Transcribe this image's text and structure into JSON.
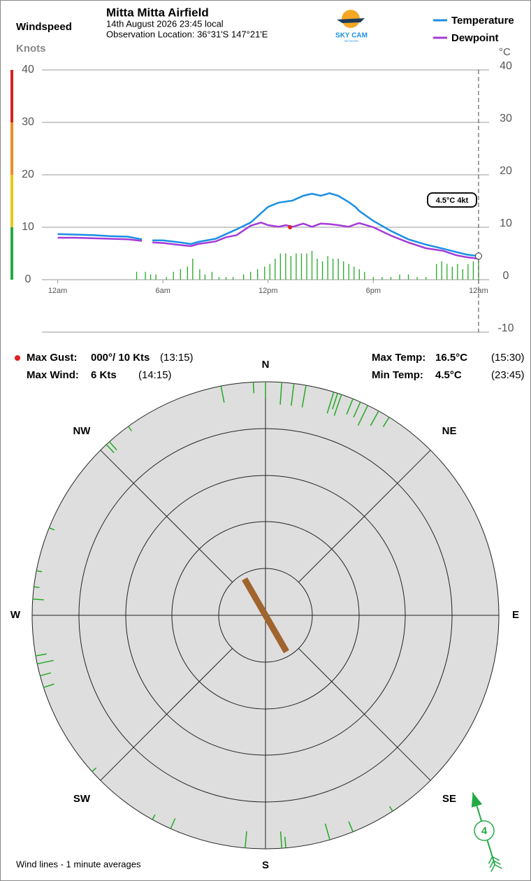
{
  "header": {
    "windspeed_label": "Windspeed",
    "knots_label": "Knots",
    "title": "Mitta Mitta Airfield",
    "date": "14th August 2026  23:45 local",
    "location": "Observation Location: 36°31'S 147°21'E",
    "logo_text": "SKY CAM",
    "logo_subtext": "NETWORK",
    "celsius_label": "°C"
  },
  "chart_data": [
    {
      "type": "line",
      "x": [
        0,
        1,
        2,
        3,
        4,
        4.8,
        5,
        5.4,
        6,
        7,
        7.6,
        8,
        9,
        9.6,
        10.2,
        11,
        11.6,
        12,
        12.6,
        13,
        13.4,
        14,
        14.5,
        15,
        15.5,
        16,
        16.6,
        17,
        17.2,
        18,
        19,
        20,
        21,
        22,
        22.7,
        23.3,
        24
      ],
      "xlim": [
        -0.9,
        24.6
      ],
      "xticks": [
        {
          "value": 0,
          "label": "12am"
        },
        {
          "value": 6,
          "label": "6am"
        },
        {
          "value": 12,
          "label": "12pm"
        },
        {
          "value": 18,
          "label": "6pm"
        },
        {
          "value": 24,
          "label": "12am"
        }
      ],
      "ylim": [
        0,
        40
      ],
      "yticks": [
        0,
        10,
        20,
        30,
        40
      ],
      "y2lim": [
        -10,
        40
      ],
      "y2ticks": [
        -10,
        0,
        10,
        20,
        30,
        40
      ],
      "series": [
        {
          "name": "Temperature",
          "color": "#1a8fe3",
          "axis": "y2",
          "values": [
            8.7,
            8.6,
            8.5,
            8.3,
            8.2,
            7.7,
            null,
            7.5,
            7.5,
            7.1,
            6.8,
            7.2,
            7.8,
            8.7,
            9.6,
            10.9,
            12.7,
            13.9,
            14.7,
            14.9,
            15.1,
            16,
            16.4,
            16,
            16.5,
            16,
            14.8,
            13.8,
            13.1,
            11.2,
            9.3,
            7.7,
            6.7,
            5.9,
            5.3,
            4.8,
            4.5
          ]
        },
        {
          "name": "Dewpoint",
          "color": "#a43bd6",
          "axis": "y2",
          "values": [
            8,
            8,
            7.9,
            7.8,
            7.7,
            7.4,
            null,
            7.1,
            7,
            6.6,
            6.4,
            6.8,
            7.3,
            8.1,
            8.5,
            10.3,
            10.9,
            10.4,
            10.1,
            10.4,
            10.1,
            10.7,
            10.1,
            10.7,
            10.6,
            10.4,
            10.1,
            10.6,
            10.8,
            10,
            8.4,
            7.1,
            6,
            5.5,
            4.7,
            4.3,
            4
          ]
        }
      ],
      "wind": {
        "color": "#22aa22",
        "x": [
          4.5,
          5,
          5.3,
          5.6,
          6.2,
          6.6,
          7,
          7.4,
          7.7,
          8.1,
          8.4,
          8.8,
          9.2,
          9.6,
          10,
          10.6,
          11,
          11.4,
          11.8,
          12.1,
          12.4,
          12.7,
          13,
          13.3,
          13.6,
          13.9,
          14.2,
          14.5,
          14.8,
          15.1,
          15.4,
          15.7,
          16,
          16.3,
          16.6,
          16.9,
          17.2,
          17.5,
          18,
          18.5,
          19,
          19.5,
          20,
          20.5,
          21,
          21.6,
          21.9,
          22.2,
          22.5,
          22.8,
          23.1,
          23.4,
          23.7,
          24
        ],
        "values": [
          1.5,
          1.5,
          1,
          1,
          0.5,
          1.5,
          2,
          2.5,
          4,
          2,
          1,
          1.5,
          0.5,
          0.5,
          0.5,
          1,
          1.5,
          2,
          2.5,
          3,
          4,
          5,
          5,
          4.5,
          5,
          5,
          5,
          5.5,
          4,
          3.5,
          4.5,
          4,
          4,
          3.5,
          3,
          2.5,
          2,
          1.5,
          0.5,
          0.5,
          0.5,
          1,
          1,
          0.5,
          0.5,
          3,
          3.5,
          3,
          2.5,
          3,
          2,
          3,
          3.5,
          4
        ]
      },
      "gust": {
        "x": 13.25,
        "value": 10,
        "color": "#e02020"
      },
      "callout": "4.5°C  4kt"
    },
    {
      "type": "wind_rose",
      "compass": [
        "N",
        "NE",
        "E",
        "SE",
        "S",
        "SW",
        "W",
        "NW"
      ],
      "color": "#22aa22",
      "directions": [
        349,
        357,
        0,
        4,
        7,
        10,
        17,
        18,
        19,
        22,
        24,
        26,
        29,
        32,
        317,
        318,
        324,
        292,
        281,
        277,
        274,
        260,
        258,
        255,
        252,
        228,
        209,
        204,
        185,
        176,
        175,
        164,
        158,
        147
      ],
      "speeds": [
        3,
        2,
        3,
        4,
        4,
        4,
        4,
        3,
        4,
        3,
        3,
        4,
        3,
        2,
        2,
        2,
        1,
        1,
        1,
        1,
        2,
        2,
        3,
        2,
        2,
        1,
        1,
        2,
        3,
        3,
        2,
        3,
        2,
        1
      ],
      "mean_direction": 330,
      "mean_color": "#a0642e",
      "current": {
        "direction": 163,
        "speed": 4,
        "color": "#22aa44"
      },
      "footnote": "Wind lines - 1 minute averages"
    }
  ],
  "stats": {
    "gust_label": "Max Gust:",
    "gust": "000°/ 10 Kts",
    "gust_time": "(13:15)",
    "wind_label": "Max Wind:",
    "wind": "6 Kts",
    "wind_time": "(14:15)",
    "maxt_label": "Max Temp:",
    "maxt": "16.5°C",
    "maxt_time": "(15:30)",
    "mint_label": "Min Temp:",
    "mint": "4.5°C",
    "mint_time": "(23:45)"
  }
}
